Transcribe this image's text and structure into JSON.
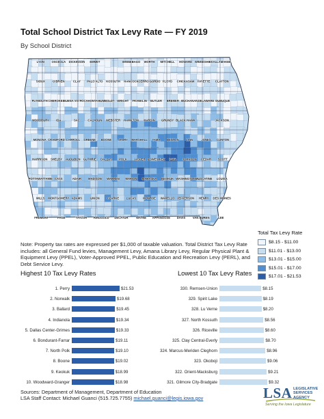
{
  "header": {
    "title": "Total School District Tax Levy Rate — FY 2019",
    "subtitle": "By School District"
  },
  "map": {
    "region": "Iowa school districts",
    "palette": [
      "#f0f5fb",
      "#c7ddf0",
      "#8fbde6",
      "#4f8ed0",
      "#2c5da8"
    ],
    "district_labels": [
      [
        "LYON",
        "OSCEOLA",
        "DICKINSON",
        "EMMET",
        "",
        "WINNEBAGO",
        "WORTH",
        "MITCHELL",
        "HOWARD",
        "WINNESHIEK",
        "ALLAMAKEE"
      ],
      [
        "SIOUX",
        "O'BRIEN",
        "CLAY",
        "PALO ALTO",
        "KOSSUTH",
        "HANCOCK",
        "CERRO GORDO",
        "FLOYD",
        "CHICKASAW",
        "FAYETTE",
        "CLAYTON"
      ],
      [
        "PLYMOUTH",
        "CHEROKEE",
        "BUENA VISTA",
        "POCAHONTAS",
        "HUMBOLDT",
        "WRIGHT",
        "FRANKLIN",
        "BUTLER",
        "BREMER",
        "BUCHANAN",
        "DELAWARE",
        "DUBUQUE"
      ],
      [
        "WOODBURY",
        "IDA",
        "SAC",
        "CALHOUN",
        "WEBSTER",
        "HAMILTON",
        "HARDIN",
        "GRUNDY",
        "BLACK HAWK",
        "",
        "JACKSON"
      ],
      [
        "MONONA",
        "CRAWFORD",
        "CARROLL",
        "GREENE",
        "BOONE",
        "STORY",
        "MARSHALL",
        "TAMA",
        "BENTON",
        "LINN",
        "JONES",
        "CLINTON"
      ],
      [
        "HARRISON",
        "SHELBY",
        "AUDUBON",
        "GUTHRIE",
        "DALLAS",
        "POLK",
        "JASPER",
        "POWESHIEK",
        "IOWA",
        "JOHNSON",
        "CEDAR",
        "SCOTT"
      ],
      [
        "POTTAWATTAMIE",
        "CASS",
        "ADAIR",
        "MADISON",
        "WARREN",
        "MARION",
        "MAHASKA",
        "KEOKUK",
        "WASHINGTON",
        "MUSCATINE",
        "LOUISA"
      ],
      [
        "MILLS",
        "MONTGOMERY",
        "ADAMS",
        "UNION",
        "CLARKE",
        "LUCAS",
        "MONROE",
        "WAPELLO",
        "JEFFERSON",
        "HENRY",
        "DES MOINES"
      ],
      [
        "FREMONT",
        "PAGE",
        "TAYLOR",
        "RINGGOLD",
        "DECATUR",
        "WAYNE",
        "APPANOOSE",
        "DAVIS",
        "VAN BUREN",
        "LEE"
      ]
    ]
  },
  "legend": {
    "title": "Total Tax Levy Rate",
    "items": [
      {
        "label": "$8.15 - $11.00",
        "color": "#f0f5fb"
      },
      {
        "label": "$11.01 - $13.00",
        "color": "#c7ddf0"
      },
      {
        "label": "$13.01 - $15.00",
        "color": "#8fbde6"
      },
      {
        "label": "$15.01 - $17.00",
        "color": "#4f8ed0"
      },
      {
        "label": "$17.01 - $21.53",
        "color": "#2c5da8"
      }
    ]
  },
  "note": "Note:  Property tax rates are expressed per $1,000 of taxable valuation.  Total District Tax Levy Rate includes: all General Fund levies, Management Levy, Amana Library Levy, Regular Physical Plant & Equipment Levy (PPEL), Voter-Approved PPEL, Public Education and Recreation Levy (PERL), and Debt Service Levy.",
  "chart_data": [
    {
      "type": "bar",
      "title": "Highest 10 Tax Levy Rates",
      "categories": [
        "1. Perry",
        "2. Norwalk",
        "3. Ballard",
        "4. Indianola",
        "5. Dallas Center-Grimes",
        "6. Bondurant-Farrar",
        "7. North Polk",
        "8. Boone",
        "9. Keokuk",
        "10. Woodward-Granger"
      ],
      "values": [
        21.53,
        19.68,
        19.45,
        19.34,
        19.33,
        19.11,
        19.1,
        19.02,
        18.99,
        18.98
      ],
      "value_labels": [
        "$21.53",
        "$19.68",
        "$19.45",
        "$19.34",
        "$19.33",
        "$19.11",
        "$19.10",
        "$19.02",
        "$18.99",
        "$18.98"
      ],
      "color": "#2c5da8"
    },
    {
      "type": "bar",
      "title": "Lowest 10 Tax Levy Rates",
      "categories": [
        "330. Remsen-Union",
        "329. Spirit Lake",
        "328. Lu Verne",
        "327. North Kossuth",
        "326. Riceville",
        "325. Clay Central-Everly",
        "324. Marcus-Meriden Cleghorn",
        "323. Okoboji",
        "322. Orient-Macksburg",
        "321. Gilmore City-Bradgate"
      ],
      "values": [
        8.15,
        8.19,
        8.2,
        8.56,
        8.6,
        8.7,
        8.96,
        9.06,
        9.21,
        9.32
      ],
      "value_labels": [
        "$8.15",
        "$8.19",
        "$8.20",
        "$8.56",
        "$8.60",
        "$8.70",
        "$8.96",
        "$9.06",
        "$9.21",
        "$9.32"
      ],
      "color": "#c7ddf0"
    }
  ],
  "footer": {
    "sources": "Sources:  Department of Management, Department of Education",
    "contact_prefix": "LSA Staff Contact:  Michael Guanci (515.725.7755) ",
    "email": "michael.guanci@legis.iowa.gov"
  },
  "logo": {
    "mark": "LSA",
    "line1": "LEGISLATIVE",
    "line2": "SERVICES AGENCY",
    "tagline": "Serving the Iowa Legislature"
  }
}
